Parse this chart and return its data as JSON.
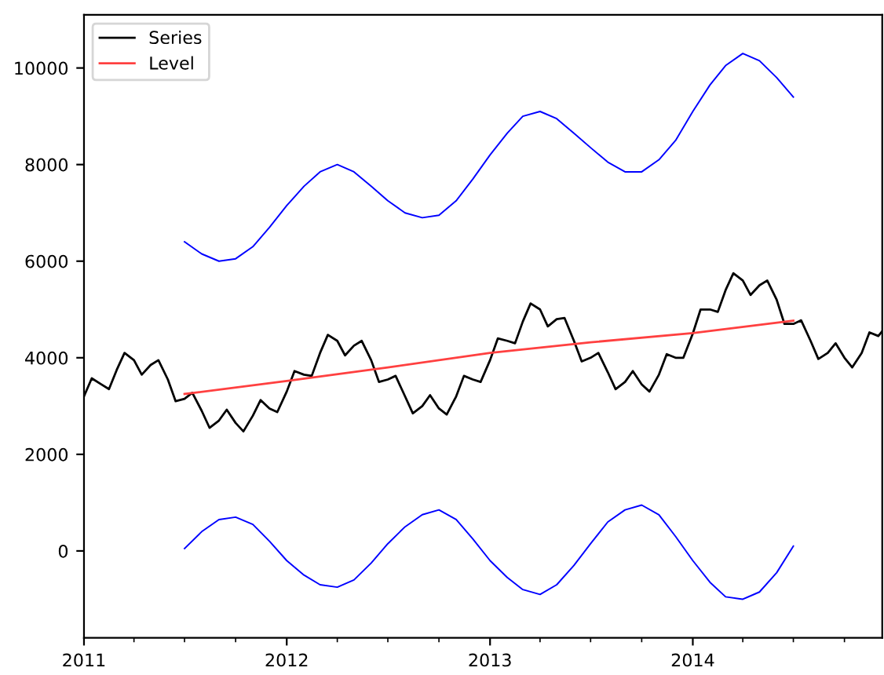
{
  "chart_data": {
    "type": "line",
    "legend": "top left",
    "grid": false,
    "xlim": [
      "2011-01-01",
      "2014-12-08"
    ],
    "ylim": [
      -1800,
      11100
    ],
    "xticks": [
      {
        "value": "2011",
        "label": "2011"
      },
      {
        "value": "2012",
        "label": "2012"
      },
      {
        "value": "2013",
        "label": "2013"
      },
      {
        "value": "2014",
        "label": "2014"
      }
    ],
    "yticks": [
      0,
      2000,
      4000,
      6000,
      8000,
      10000
    ],
    "series": [
      {
        "name": "Series",
        "color": "#000000",
        "x": [
          "2011-01-01",
          "2011-01-15",
          "2011-02-01",
          "2011-02-15",
          "2011-03-01",
          "2011-03-15",
          "2011-04-01",
          "2011-04-15",
          "2011-05-01",
          "2011-05-15",
          "2011-06-01",
          "2011-06-15",
          "2011-07-01",
          "2011-07-15",
          "2011-08-01",
          "2011-08-15",
          "2011-09-01",
          "2011-09-15",
          "2011-10-01",
          "2011-10-15",
          "2011-11-01",
          "2011-11-15",
          "2011-12-01",
          "2011-12-15",
          "2012-01-01",
          "2012-01-15",
          "2012-02-01",
          "2012-02-15",
          "2012-03-01",
          "2012-03-15",
          "2012-04-01",
          "2012-04-15",
          "2012-05-01",
          "2012-05-15",
          "2012-06-01",
          "2012-06-15",
          "2012-07-01",
          "2012-07-15",
          "2012-08-01",
          "2012-08-15",
          "2012-09-01",
          "2012-09-15",
          "2012-10-01",
          "2012-10-15",
          "2012-11-01",
          "2012-11-15",
          "2012-12-01",
          "2012-12-15",
          "2013-01-01",
          "2013-01-15",
          "2013-02-01",
          "2013-02-15",
          "2013-03-01",
          "2013-03-15",
          "2013-04-01",
          "2013-04-15",
          "2013-05-01",
          "2013-05-15",
          "2013-06-01",
          "2013-06-15",
          "2013-07-01",
          "2013-07-15",
          "2013-08-01",
          "2013-08-15",
          "2013-09-01",
          "2013-09-15",
          "2013-10-01",
          "2013-10-15",
          "2013-11-01",
          "2013-11-15",
          "2013-12-01",
          "2013-12-15",
          "2014-01-01",
          "2014-01-15",
          "2014-02-01",
          "2014-02-15",
          "2014-03-01",
          "2014-03-15",
          "2014-04-01",
          "2014-04-15",
          "2014-05-01",
          "2014-05-15",
          "2014-06-01",
          "2014-06-15",
          "2014-07-01",
          "2014-07-15",
          "2014-08-01",
          "2014-08-15",
          "2014-09-01",
          "2014-09-15",
          "2014-10-01",
          "2014-10-15",
          "2014-11-01",
          "2014-11-15",
          "2014-12-01",
          "2014-12-08"
        ],
        "values": [
          3200,
          3575,
          3450,
          3350,
          3750,
          4100,
          3950,
          3650,
          3850,
          3950,
          3550,
          3100,
          3150,
          3275,
          2900,
          2550,
          2700,
          2925,
          2650,
          2475,
          2800,
          3125,
          2950,
          2875,
          3300,
          3725,
          3650,
          3625,
          4100,
          4475,
          4350,
          4050,
          4250,
          4350,
          3950,
          3500,
          3550,
          3625,
          3200,
          2850,
          3000,
          3225,
          2950,
          2825,
          3200,
          3625,
          3550,
          3500,
          3950,
          4400,
          4350,
          4300,
          4750,
          5125,
          5000,
          4650,
          4800,
          4825,
          4350,
          3925,
          4000,
          4100,
          3700,
          3350,
          3500,
          3725,
          3450,
          3300,
          3650,
          4075,
          4000,
          4000,
          4500,
          5000,
          5000,
          4950,
          5400,
          5750,
          5600,
          5300,
          5500,
          5600,
          5200,
          4700,
          4700,
          4775,
          4350,
          3975,
          4100,
          4300,
          4000,
          3800,
          4100,
          4525,
          4450,
          4550
        ]
      },
      {
        "name": "Level",
        "color": "#ff4040",
        "x": [
          "2011-07-01",
          "2012-01-01",
          "2012-07-01",
          "2013-01-01",
          "2013-07-01",
          "2014-01-01",
          "2014-07-01"
        ],
        "values": [
          3250,
          3520,
          3800,
          4100,
          4320,
          4510,
          4770
        ]
      },
      {
        "color": "#0000ff",
        "x": [
          "2011-07-01",
          "2011-08-01",
          "2011-09-01",
          "2011-10-01",
          "2011-11-01",
          "2011-12-01",
          "2012-01-01",
          "2012-02-01",
          "2012-03-01",
          "2012-04-01",
          "2012-05-01",
          "2012-06-01",
          "2012-07-01",
          "2012-08-01",
          "2012-09-01",
          "2012-10-01",
          "2012-11-01",
          "2012-12-01",
          "2013-01-01",
          "2013-02-01",
          "2013-03-01",
          "2013-04-01",
          "2013-05-01",
          "2013-06-01",
          "2013-07-01",
          "2013-08-01",
          "2013-09-01",
          "2013-10-01",
          "2013-11-01",
          "2013-12-01",
          "2014-01-01",
          "2014-02-01",
          "2014-03-01",
          "2014-04-01",
          "2014-05-01",
          "2014-06-01",
          "2014-07-01"
        ],
        "values": [
          6400,
          6150,
          6000,
          6050,
          6300,
          6700,
          7150,
          7550,
          7850,
          8000,
          7850,
          7550,
          7250,
          7000,
          6900,
          6950,
          7250,
          7700,
          8200,
          8650,
          9000,
          9100,
          8950,
          8650,
          8350,
          8050,
          7850,
          7850,
          8100,
          8500,
          9100,
          9650,
          10050,
          10300,
          10150,
          9800,
          9400
        ]
      },
      {
        "color": "#0000ff",
        "x": [
          "2011-07-01",
          "2011-08-01",
          "2011-09-01",
          "2011-10-01",
          "2011-11-01",
          "2011-12-01",
          "2012-01-01",
          "2012-02-01",
          "2012-03-01",
          "2012-04-01",
          "2012-05-01",
          "2012-06-01",
          "2012-07-01",
          "2012-08-01",
          "2012-09-01",
          "2012-10-01",
          "2012-11-01",
          "2012-12-01",
          "2013-01-01",
          "2013-02-01",
          "2013-03-01",
          "2013-04-01",
          "2013-05-01",
          "2013-06-01",
          "2013-07-01",
          "2013-08-01",
          "2013-09-01",
          "2013-10-01",
          "2013-11-01",
          "2013-12-01",
          "2014-01-01",
          "2014-02-01",
          "2014-03-01",
          "2014-04-01",
          "2014-05-01",
          "2014-06-01",
          "2014-07-01"
        ],
        "values": [
          50,
          400,
          650,
          700,
          550,
          200,
          -200,
          -500,
          -700,
          -750,
          -600,
          -250,
          150,
          500,
          750,
          850,
          650,
          250,
          -200,
          -550,
          -800,
          -900,
          -700,
          -300,
          150,
          600,
          850,
          950,
          750,
          300,
          -200,
          -650,
          -950,
          -1000,
          -850,
          -450,
          100
        ]
      }
    ]
  }
}
